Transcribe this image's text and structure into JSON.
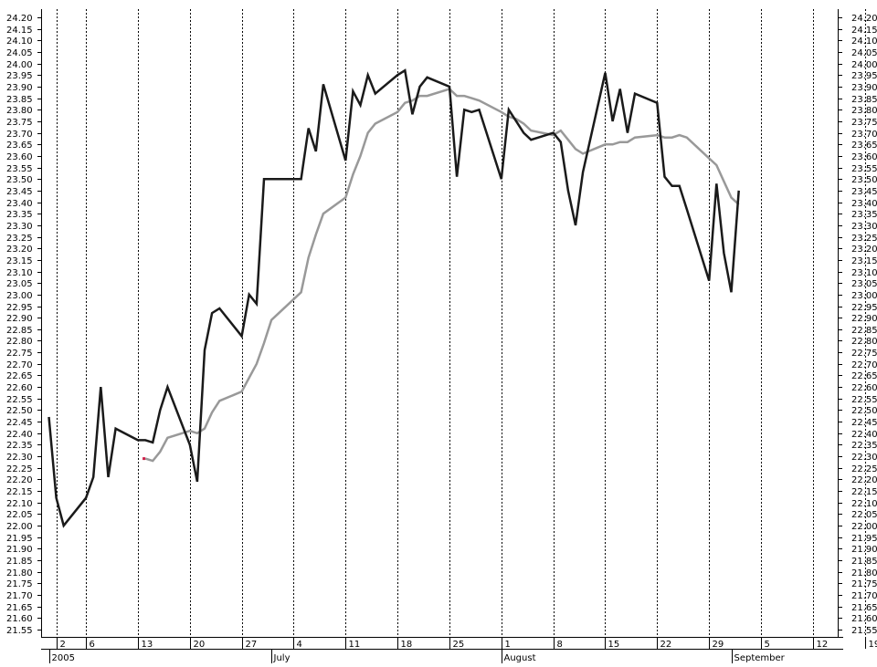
{
  "chart_data": {
    "type": "line",
    "y_axis": {
      "min": 21.55,
      "max": 24.2,
      "step": 0.05,
      "label_left": true,
      "label_right": true,
      "ticks": [
        "21.55",
        "21.60",
        "21.65",
        "21.70",
        "21.75",
        "21.80",
        "21.85",
        "21.90",
        "21.95",
        "22.00",
        "22.05",
        "22.10",
        "22.15",
        "22.20",
        "22.25",
        "22.30",
        "22.35",
        "22.40",
        "22.45",
        "22.50",
        "22.55",
        "22.60",
        "22.65",
        "22.70",
        "22.75",
        "22.80",
        "22.85",
        "22.90",
        "22.95",
        "23.00",
        "23.05",
        "23.10",
        "23.15",
        "23.20",
        "23.25",
        "23.30",
        "23.35",
        "23.40",
        "23.45",
        "23.50",
        "23.55",
        "23.60",
        "23.65",
        "23.70",
        "23.75",
        "23.80",
        "23.85",
        "23.90",
        "23.95",
        "24.00",
        "24.05",
        "24.10",
        "24.15",
        "24.20"
      ]
    },
    "x_axis": {
      "start": "2005-06-01",
      "end": "2005-09-19",
      "day_labels": [
        {
          "date": "2005-06-02",
          "label": "2"
        },
        {
          "date": "2005-06-06",
          "label": "6"
        },
        {
          "date": "2005-06-13",
          "label": "13"
        },
        {
          "date": "2005-06-20",
          "label": "20"
        },
        {
          "date": "2005-06-27",
          "label": "27"
        },
        {
          "date": "2005-07-04",
          "label": "4"
        },
        {
          "date": "2005-07-11",
          "label": "11"
        },
        {
          "date": "2005-07-18",
          "label": "18"
        },
        {
          "date": "2005-07-25",
          "label": "25"
        },
        {
          "date": "2005-08-01",
          "label": "1"
        },
        {
          "date": "2005-08-08",
          "label": "8"
        },
        {
          "date": "2005-08-15",
          "label": "15"
        },
        {
          "date": "2005-08-22",
          "label": "22"
        },
        {
          "date": "2005-08-29",
          "label": "29"
        },
        {
          "date": "2005-09-05",
          "label": "5"
        },
        {
          "date": "2005-09-12",
          "label": "12"
        },
        {
          "date": "2005-09-19",
          "label": "19"
        }
      ],
      "month_labels": [
        {
          "date": "2005-06-01",
          "label": "2005"
        },
        {
          "date": "2005-07-01",
          "label": "July"
        },
        {
          "date": "2005-08-01",
          "label": "August"
        },
        {
          "date": "2005-09-01",
          "label": "September"
        }
      ],
      "vertical_grid": "dotted at weekly labels"
    },
    "series": [
      {
        "color": "#1a1a1a",
        "width": 2.5,
        "points": [
          [
            "2005-06-01",
            22.47
          ],
          [
            "2005-06-02",
            22.12
          ],
          [
            "2005-06-03",
            22.0
          ],
          [
            "2005-06-06",
            22.12
          ],
          [
            "2005-06-07",
            22.21
          ],
          [
            "2005-06-08",
            22.6
          ],
          [
            "2005-06-09",
            22.21
          ],
          [
            "2005-06-10",
            22.42
          ],
          [
            "2005-06-13",
            22.37
          ],
          [
            "2005-06-14",
            22.37
          ],
          [
            "2005-06-15",
            22.36
          ],
          [
            "2005-06-16",
            22.5
          ],
          [
            "2005-06-17",
            22.6
          ],
          [
            "2005-06-20",
            22.35
          ],
          [
            "2005-06-21",
            22.19
          ],
          [
            "2005-06-22",
            22.76
          ],
          [
            "2005-06-23",
            22.92
          ],
          [
            "2005-06-24",
            22.94
          ],
          [
            "2005-06-27",
            22.82
          ],
          [
            "2005-06-28",
            23.0
          ],
          [
            "2005-06-29",
            22.96
          ],
          [
            "2005-06-30",
            23.5
          ],
          [
            "2005-07-01",
            23.5
          ],
          [
            "2005-07-05",
            23.5
          ],
          [
            "2005-07-06",
            23.72
          ],
          [
            "2005-07-07",
            23.62
          ],
          [
            "2005-07-08",
            23.91
          ],
          [
            "2005-07-11",
            23.58
          ],
          [
            "2005-07-12",
            23.88
          ],
          [
            "2005-07-13",
            23.82
          ],
          [
            "2005-07-14",
            23.95
          ],
          [
            "2005-07-15",
            23.87
          ],
          [
            "2005-07-18",
            23.95
          ],
          [
            "2005-07-19",
            23.97
          ],
          [
            "2005-07-20",
            23.78
          ],
          [
            "2005-07-21",
            23.9
          ],
          [
            "2005-07-22",
            23.94
          ],
          [
            "2005-07-25",
            23.9
          ],
          [
            "2005-07-26",
            23.51
          ],
          [
            "2005-07-27",
            23.8
          ],
          [
            "2005-07-28",
            23.79
          ],
          [
            "2005-07-29",
            23.8
          ],
          [
            "2005-08-01",
            23.5
          ],
          [
            "2005-08-02",
            23.8
          ],
          [
            "2005-08-03",
            23.75
          ],
          [
            "2005-08-04",
            23.7
          ],
          [
            "2005-08-05",
            23.67
          ],
          [
            "2005-08-08",
            23.7
          ],
          [
            "2005-08-09",
            23.66
          ],
          [
            "2005-08-10",
            23.45
          ],
          [
            "2005-08-11",
            23.3
          ],
          [
            "2005-08-12",
            23.53
          ],
          [
            "2005-08-15",
            23.96
          ],
          [
            "2005-08-16",
            23.75
          ],
          [
            "2005-08-17",
            23.89
          ],
          [
            "2005-08-18",
            23.7
          ],
          [
            "2005-08-19",
            23.87
          ],
          [
            "2005-08-22",
            23.83
          ],
          [
            "2005-08-23",
            23.51
          ],
          [
            "2005-08-24",
            23.47
          ],
          [
            "2005-08-25",
            23.47
          ],
          [
            "2005-08-26",
            23.37
          ],
          [
            "2005-08-29",
            23.06
          ],
          [
            "2005-08-30",
            23.48
          ],
          [
            "2005-08-31",
            23.18
          ],
          [
            "2005-09-01",
            23.01
          ],
          [
            "2005-09-02",
            23.45
          ]
        ]
      },
      {
        "color": "#999999",
        "width": 2.5,
        "points": [
          [
            "2005-06-14",
            22.29
          ],
          [
            "2005-06-15",
            22.28
          ],
          [
            "2005-06-16",
            22.32
          ],
          [
            "2005-06-17",
            22.38
          ],
          [
            "2005-06-20",
            22.41
          ],
          [
            "2005-06-21",
            22.4
          ],
          [
            "2005-06-22",
            22.42
          ],
          [
            "2005-06-23",
            22.49
          ],
          [
            "2005-06-24",
            22.54
          ],
          [
            "2005-06-27",
            22.58
          ],
          [
            "2005-06-28",
            22.64
          ],
          [
            "2005-06-29",
            22.7
          ],
          [
            "2005-06-30",
            22.79
          ],
          [
            "2005-07-01",
            22.89
          ],
          [
            "2005-07-05",
            23.01
          ],
          [
            "2005-07-06",
            23.16
          ],
          [
            "2005-07-07",
            23.26
          ],
          [
            "2005-07-08",
            23.35
          ],
          [
            "2005-07-11",
            23.42
          ],
          [
            "2005-07-12",
            23.52
          ],
          [
            "2005-07-13",
            23.6
          ],
          [
            "2005-07-14",
            23.7
          ],
          [
            "2005-07-15",
            23.74
          ],
          [
            "2005-07-18",
            23.79
          ],
          [
            "2005-07-19",
            23.83
          ],
          [
            "2005-07-20",
            23.84
          ],
          [
            "2005-07-21",
            23.86
          ],
          [
            "2005-07-22",
            23.86
          ],
          [
            "2005-07-25",
            23.89
          ],
          [
            "2005-07-26",
            23.86
          ],
          [
            "2005-07-27",
            23.86
          ],
          [
            "2005-07-28",
            23.85
          ],
          [
            "2005-07-29",
            23.84
          ],
          [
            "2005-08-01",
            23.79
          ],
          [
            "2005-08-02",
            23.77
          ],
          [
            "2005-08-03",
            23.76
          ],
          [
            "2005-08-04",
            23.74
          ],
          [
            "2005-08-05",
            23.71
          ],
          [
            "2005-08-08",
            23.69
          ],
          [
            "2005-08-09",
            23.71
          ],
          [
            "2005-08-10",
            23.67
          ],
          [
            "2005-08-11",
            23.63
          ],
          [
            "2005-08-12",
            23.61
          ],
          [
            "2005-08-15",
            23.65
          ],
          [
            "2005-08-16",
            23.65
          ],
          [
            "2005-08-17",
            23.66
          ],
          [
            "2005-08-18",
            23.66
          ],
          [
            "2005-08-19",
            23.68
          ],
          [
            "2005-08-22",
            23.69
          ],
          [
            "2005-08-23",
            23.68
          ],
          [
            "2005-08-24",
            23.68
          ],
          [
            "2005-08-25",
            23.69
          ],
          [
            "2005-08-26",
            23.68
          ],
          [
            "2005-08-29",
            23.59
          ],
          [
            "2005-08-30",
            23.56
          ],
          [
            "2005-08-31",
            23.49
          ],
          [
            "2005-09-01",
            23.42
          ],
          [
            "2005-09-02",
            23.39
          ]
        ]
      }
    ],
    "marker": {
      "date": "2005-06-14",
      "value": 22.29,
      "color": "#d0204a"
    },
    "grid": true,
    "legend": "none"
  }
}
